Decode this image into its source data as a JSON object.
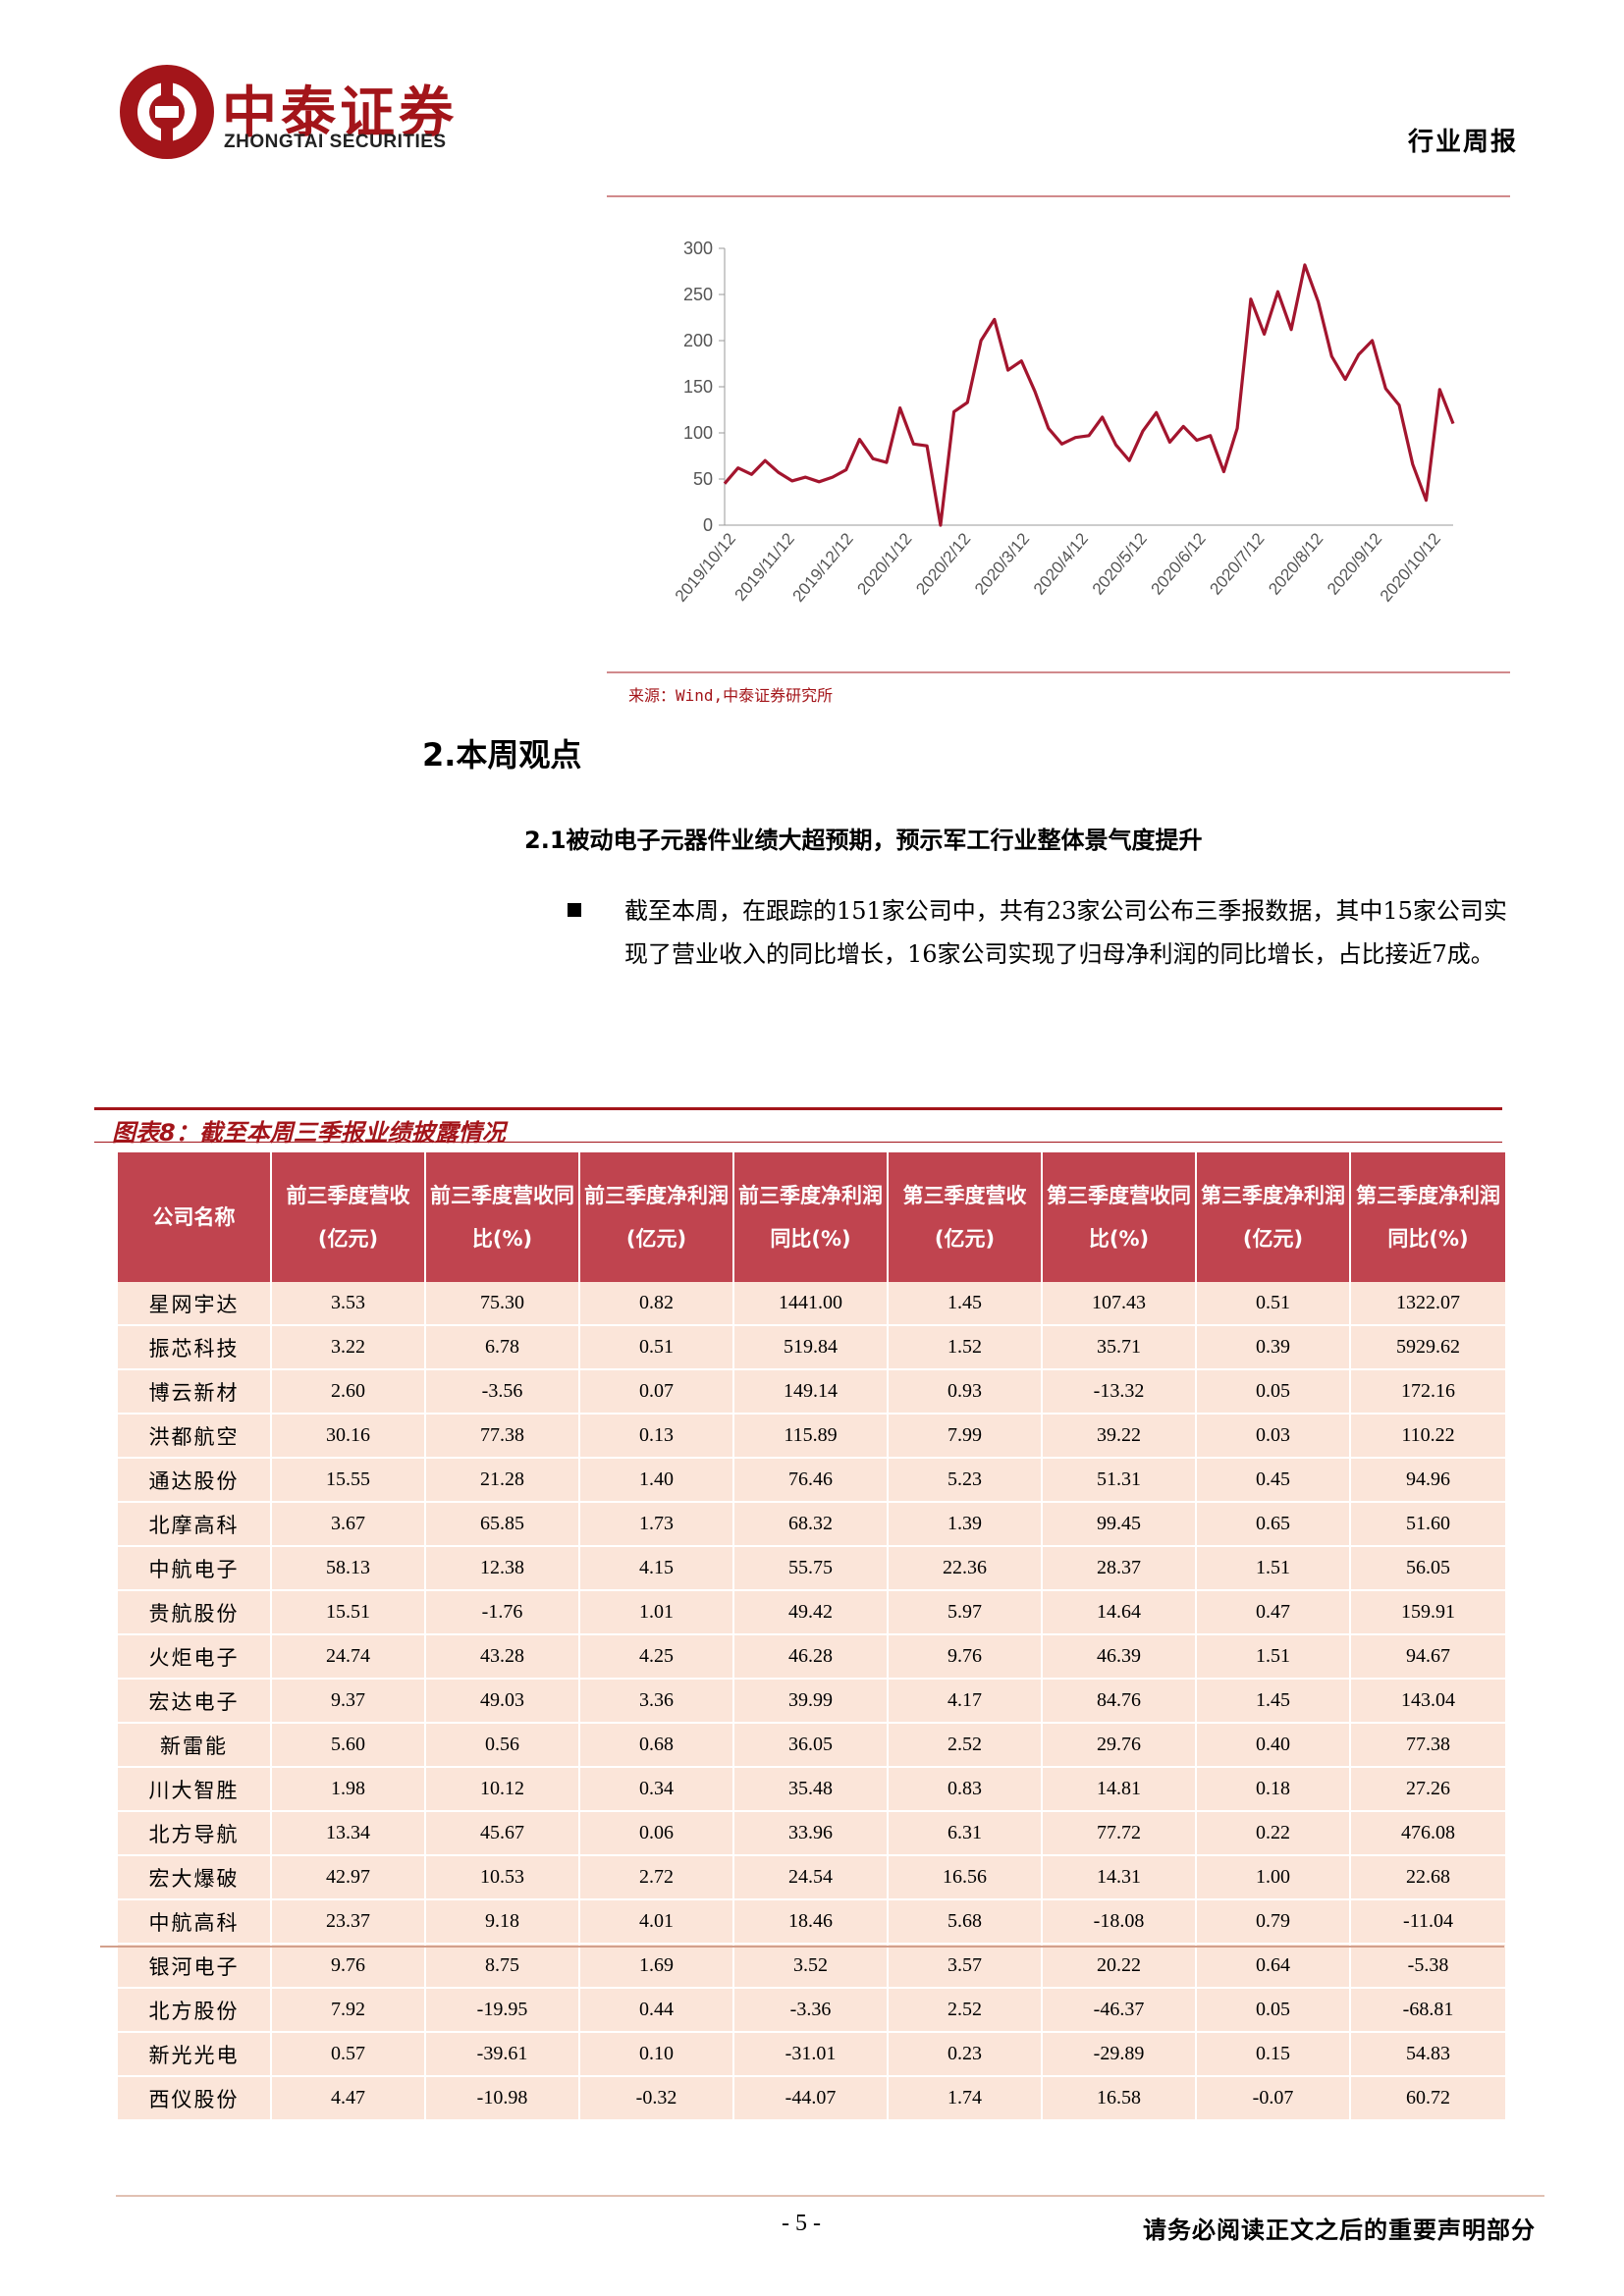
{
  "header": {
    "brand_cn": "中泰证券",
    "brand_en": "ZHONGTAI SECURITIES",
    "report_type": "行业周报"
  },
  "colors": {
    "brand": "#a3151a",
    "table_header": "#c0444f",
    "table_row": "#fbe5d9",
    "line": "#a3152e"
  },
  "chart_source": "来源：Wind,中泰证券研究所",
  "chart_data": {
    "type": "line",
    "title": "",
    "xlabel": "",
    "ylabel": "",
    "ylim": [
      0,
      300
    ],
    "yticks": [
      "0",
      "50",
      "100",
      "150",
      "200",
      "250",
      "300"
    ],
    "xticks": [
      "2019/10/12",
      "2019/11/12",
      "2019/12/12",
      "2020/1/12",
      "2020/2/12",
      "2020/3/12",
      "2020/4/12",
      "2020/5/12",
      "2020/6/12",
      "2020/7/12",
      "2020/8/12",
      "2020/9/12",
      "2020/10/12"
    ],
    "grid": false,
    "values": [
      45,
      62,
      55,
      70,
      57,
      48,
      52,
      47,
      52,
      60,
      93,
      72,
      68,
      127,
      88,
      86,
      0,
      123,
      133,
      200,
      223,
      168,
      178,
      145,
      105,
      88,
      95,
      97,
      117,
      87,
      70,
      102,
      122,
      90,
      107,
      92,
      97,
      58,
      105,
      245,
      207,
      253,
      212,
      282,
      242,
      183,
      158,
      185,
      200,
      148,
      130,
      66,
      27,
      147,
      110
    ]
  },
  "section": {
    "title": "2.本周观点",
    "subtitle": "2.1被动电子元器件业绩大超预期，预示军工行业整体景气度提升",
    "bullet": "截至本周，在跟踪的151家公司中，共有23家公司公布三季报数据，其中15家公司实现了营业收入的同比增长，16家公司实现了归母净利润的同比增长，占比接近7成。"
  },
  "table": {
    "title": "图表8：截至本周三季报业绩披露情况",
    "columns": [
      "公司名称",
      "前三季度营收(亿元)",
      "前三季度营收同比(%)",
      "前三季度净利润(亿元)",
      "前三季度净利润同比(%)",
      "第三季度营收(亿元)",
      "第三季度营收同比(%)",
      "第三季度净利润(亿元)",
      "第三季度净利润同比(%)"
    ],
    "rows": [
      [
        "星网宇达",
        "3.53",
        "75.30",
        "0.82",
        "1441.00",
        "1.45",
        "107.43",
        "0.51",
        "1322.07"
      ],
      [
        "振芯科技",
        "3.22",
        "6.78",
        "0.51",
        "519.84",
        "1.52",
        "35.71",
        "0.39",
        "5929.62"
      ],
      [
        "博云新材",
        "2.60",
        "-3.56",
        "0.07",
        "149.14",
        "0.93",
        "-13.32",
        "0.05",
        "172.16"
      ],
      [
        "洪都航空",
        "30.16",
        "77.38",
        "0.13",
        "115.89",
        "7.99",
        "39.22",
        "0.03",
        "110.22"
      ],
      [
        "通达股份",
        "15.55",
        "21.28",
        "1.40",
        "76.46",
        "5.23",
        "51.31",
        "0.45",
        "94.96"
      ],
      [
        "北摩高科",
        "3.67",
        "65.85",
        "1.73",
        "68.32",
        "1.39",
        "99.45",
        "0.65",
        "51.60"
      ],
      [
        "中航电子",
        "58.13",
        "12.38",
        "4.15",
        "55.75",
        "22.36",
        "28.37",
        "1.51",
        "56.05"
      ],
      [
        "贵航股份",
        "15.51",
        "-1.76",
        "1.01",
        "49.42",
        "5.97",
        "14.64",
        "0.47",
        "159.91"
      ],
      [
        "火炬电子",
        "24.74",
        "43.28",
        "4.25",
        "46.28",
        "9.76",
        "46.39",
        "1.51",
        "94.67"
      ],
      [
        "宏达电子",
        "9.37",
        "49.03",
        "3.36",
        "39.99",
        "4.17",
        "84.76",
        "1.45",
        "143.04"
      ],
      [
        "新雷能",
        "5.60",
        "0.56",
        "0.68",
        "36.05",
        "2.52",
        "29.76",
        "0.40",
        "77.38"
      ],
      [
        "川大智胜",
        "1.98",
        "10.12",
        "0.34",
        "35.48",
        "0.83",
        "14.81",
        "0.18",
        "27.26"
      ],
      [
        "北方导航",
        "13.34",
        "45.67",
        "0.06",
        "33.96",
        "6.31",
        "77.72",
        "0.22",
        "476.08"
      ],
      [
        "宏大爆破",
        "42.97",
        "10.53",
        "2.72",
        "24.54",
        "16.56",
        "14.31",
        "1.00",
        "22.68"
      ],
      [
        "中航高科",
        "23.37",
        "9.18",
        "4.01",
        "18.46",
        "5.68",
        "-18.08",
        "0.79",
        "-11.04"
      ],
      [
        "银河电子",
        "9.76",
        "8.75",
        "1.69",
        "3.52",
        "3.57",
        "20.22",
        "0.64",
        "-5.38"
      ],
      [
        "北方股份",
        "7.92",
        "-19.95",
        "0.44",
        "-3.36",
        "2.52",
        "-46.37",
        "0.05",
        "-68.81"
      ],
      [
        "新光光电",
        "0.57",
        "-39.61",
        "0.10",
        "-31.01",
        "0.23",
        "-29.89",
        "0.15",
        "54.83"
      ],
      [
        "西仪股份",
        "4.47",
        "-10.98",
        "-0.32",
        "-44.07",
        "1.74",
        "16.58",
        "-0.07",
        "60.72"
      ]
    ]
  },
  "footer": {
    "page_number": "- 5 -",
    "disclaimer": "请务必阅读正文之后的重要声明部分"
  }
}
